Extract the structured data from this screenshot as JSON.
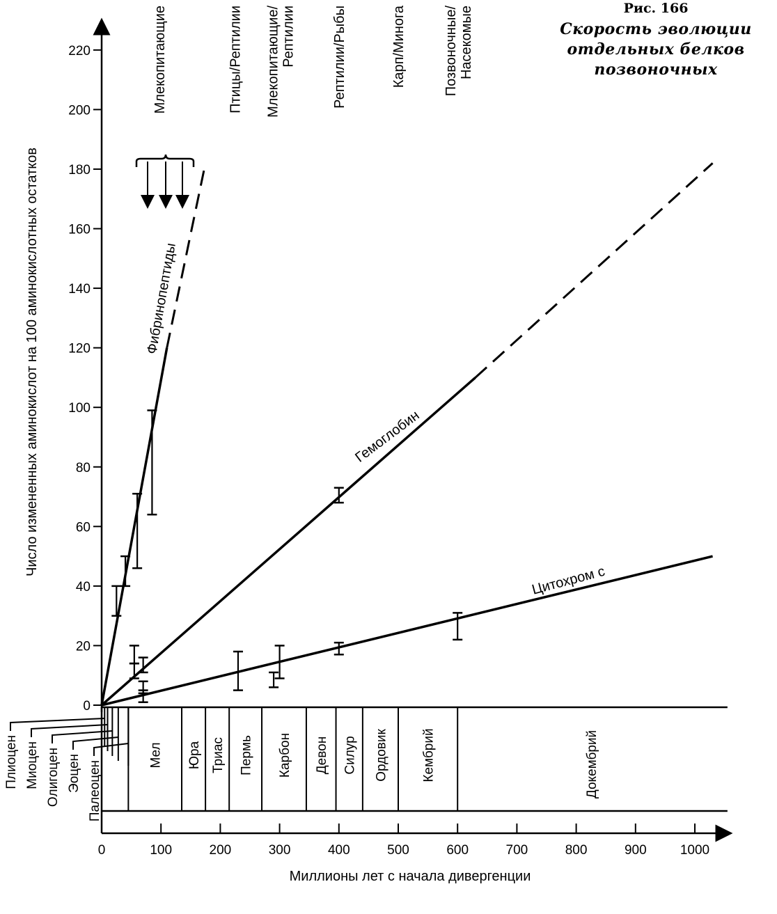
{
  "figure": {
    "number": "Рис. 166",
    "caption_lines": [
      "Скорость эволюции",
      "отдельных белков",
      "позвоночных"
    ]
  },
  "chart_data": {
    "type": "line",
    "title": "Скорость эволюции отдельных белков позвоночных",
    "xlabel": "Миллионы лет с начала дивергенции",
    "ylabel": "Число измененных аминокислот на 100 аминокислотных остатков",
    "xlim": [
      0,
      1050
    ],
    "ylim": [
      0,
      230
    ],
    "xticks": [
      0,
      100,
      200,
      300,
      400,
      500,
      600,
      700,
      800,
      900,
      1000
    ],
    "yticks": [
      0,
      20,
      40,
      60,
      80,
      100,
      120,
      140,
      160,
      180,
      200,
      220
    ],
    "grid": false,
    "series": [
      {
        "name": "Фибринопептиды",
        "solid": [
          [
            0,
            0
          ],
          [
            110,
            120
          ]
        ],
        "dashed": [
          [
            110,
            120
          ],
          [
            175,
            182
          ]
        ],
        "error_bars": [
          {
            "x": 25,
            "y": 35,
            "low": 30,
            "high": 40
          },
          {
            "x": 40,
            "y": 45,
            "low": 40,
            "high": 50
          },
          {
            "x": 60,
            "y": 60,
            "low": 46,
            "high": 71
          },
          {
            "x": 85,
            "y": 80,
            "low": 64,
            "high": 99
          }
        ]
      },
      {
        "name": "Гемоглобин",
        "solid": [
          [
            0,
            0
          ],
          [
            630,
            110
          ]
        ],
        "dashed": [
          [
            630,
            110
          ],
          [
            1030,
            182
          ]
        ],
        "error_bars": [
          {
            "x": 55,
            "y": 17,
            "low": 14,
            "high": 20
          },
          {
            "x": 55,
            "y": 11,
            "low": 9,
            "high": 14
          },
          {
            "x": 70,
            "y": 14,
            "low": 11,
            "high": 16
          },
          {
            "x": 400,
            "y": 70,
            "low": 68,
            "high": 73
          }
        ]
      },
      {
        "name": "Цитохром с",
        "solid": [
          [
            0,
            0
          ],
          [
            1030,
            50
          ]
        ],
        "dashed": [],
        "error_bars": [
          {
            "x": 70,
            "y": 5,
            "low": 1,
            "high": 8
          },
          {
            "x": 70,
            "y": 4.5,
            "low": 4,
            "high": 5
          },
          {
            "x": 230,
            "y": 11,
            "low": 5,
            "high": 18
          },
          {
            "x": 290,
            "y": 9,
            "low": 6,
            "high": 11
          },
          {
            "x": 300,
            "y": 15,
            "low": 9,
            "high": 20
          },
          {
            "x": 400,
            "y": 19,
            "low": 17,
            "high": 21
          },
          {
            "x": 600,
            "y": 27,
            "low": 22,
            "high": 31
          }
        ]
      }
    ],
    "divergence_labels": [
      {
        "label": "Млекопитающие",
        "x": 100
      },
      {
        "label": "Птицы/Рептилии",
        "x": 225
      },
      {
        "label": "Млекопитающие/ Рептилии",
        "x": 300
      },
      {
        "label": "Рептилии/Рыбы",
        "x": 400
      },
      {
        "label": "Карп/Минога",
        "x": 500
      },
      {
        "label": "Позвоночные/ Насекомые",
        "x": 600
      }
    ],
    "annotation": "Диапазон расхождения млекопитающих (стрелки вниз)",
    "geologic_periods": [
      {
        "name": "Мел",
        "start": 45,
        "end": 135
      },
      {
        "name": "Юра",
        "start": 135,
        "end": 175
      },
      {
        "name": "Триас",
        "start": 175,
        "end": 215
      },
      {
        "name": "Пермь",
        "start": 215,
        "end": 270
      },
      {
        "name": "Карбон",
        "start": 270,
        "end": 345
      },
      {
        "name": "Девон",
        "start": 345,
        "end": 395
      },
      {
        "name": "Силур",
        "start": 395,
        "end": 440
      },
      {
        "name": "Ордовик",
        "start": 440,
        "end": 500
      },
      {
        "name": "Кембрий",
        "start": 500,
        "end": 600
      },
      {
        "name": "Докембрий",
        "start": 600,
        "end": 1050
      }
    ],
    "cenozoic_epochs": [
      {
        "name": "Плиоцен",
        "end": 5
      },
      {
        "name": "Миоцен",
        "end": 10
      },
      {
        "name": "Олигоцен",
        "end": 18
      },
      {
        "name": "Эоцен",
        "end": 28
      },
      {
        "name": "Палеоцен",
        "end": 45
      }
    ]
  }
}
